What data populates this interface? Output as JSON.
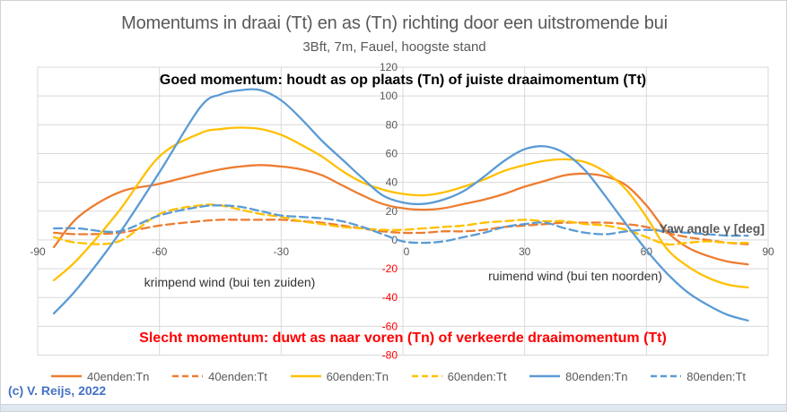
{
  "header": {
    "title": "Momentums in draai (Tt) en as (Tn) richting door een uitstromende bui",
    "subtitle": "3Bft, 7m, Fauel, hoogste stand",
    "title_color": "#595959"
  },
  "annotations": {
    "good_momentum": "Goed momentum: houdt as op plaats (Tn) of juiste draaimomentum (Tt)",
    "bad_momentum": "Slecht momentum: duwt as naar voren (Tn) of verkeerde draaimomentum (Tt)",
    "left_region": "krimpend wind (bui ten zuiden)",
    "right_region": "ruimend wind (bui ten noorden)",
    "x_axis_label": "Yaw angle γ [deg]",
    "good_color": "#000000",
    "bad_color": "#FF0000"
  },
  "footer": {
    "copyright": "(c) V. Reijs, 2022",
    "color": "#4472C4"
  },
  "chart_data": {
    "type": "line",
    "title": "Momentums in draai (Tt) en as (Tn) richting door een uitstromende bui",
    "subtitle": "3Bft, 7m, Fauel, hoogste stand",
    "xlabel": "Yaw angle γ [deg]",
    "ylabel": "",
    "xlim": [
      -90,
      90
    ],
    "ylim": [
      -80,
      120
    ],
    "x_ticks": [
      -90,
      -60,
      -30,
      0,
      30,
      60,
      90
    ],
    "y_ticks": [
      120,
      100,
      80,
      60,
      40,
      20,
      0,
      -20,
      -40,
      -60,
      -80
    ],
    "grid": true,
    "grid_color": "#D9D9D9",
    "tick_color": "#595959",
    "negative_tick_color": "#FF0000",
    "legend_position": "bottom",
    "x": [
      -86,
      -80,
      -70,
      -60,
      -50,
      -45,
      -40,
      -35,
      -30,
      -25,
      -20,
      -15,
      -10,
      -5,
      0,
      5,
      10,
      15,
      20,
      25,
      30,
      35,
      40,
      45,
      50,
      55,
      60,
      65,
      70,
      75,
      80,
      85
    ],
    "series": [
      {
        "name": "40enden:Tn",
        "color": "#ED7D31",
        "dash": false,
        "values": [
          -5,
          16,
          33,
          39,
          46,
          49,
          51,
          52,
          51,
          49,
          45,
          38,
          31,
          25,
          22,
          21,
          22,
          25,
          28,
          32,
          37,
          41,
          45,
          46,
          44,
          38,
          24,
          6,
          -5,
          -11,
          -15,
          -17
        ]
      },
      {
        "name": "40enden:Tt",
        "color": "#ED7D31",
        "dash": true,
        "values": [
          5,
          4,
          5,
          10,
          13,
          14,
          14,
          14,
          14,
          13,
          12,
          10,
          8,
          6,
          5,
          5,
          6,
          6,
          7,
          9,
          10,
          11,
          12,
          12,
          12,
          11,
          9,
          5,
          2,
          0,
          -2,
          -3
        ]
      },
      {
        "name": "60enden:Tn",
        "color": "#FFC000",
        "dash": false,
        "values": [
          -28,
          -13,
          20,
          58,
          74,
          77,
          78,
          77,
          73,
          66,
          58,
          48,
          40,
          35,
          32,
          31,
          33,
          37,
          42,
          48,
          52,
          55,
          56,
          54,
          47,
          35,
          16,
          -6,
          -18,
          -26,
          -31,
          -33
        ]
      },
      {
        "name": "60enden:Tt",
        "color": "#FFC000",
        "dash": true,
        "values": [
          2,
          -2,
          -1,
          18,
          24,
          24,
          21,
          18,
          16,
          13,
          11,
          9,
          8,
          7,
          7,
          8,
          9,
          10,
          12,
          13,
          14,
          13,
          13,
          11,
          10,
          7,
          2,
          -3,
          -2,
          -1,
          -2,
          -2
        ]
      },
      {
        "name": "80enden:Tn",
        "color": "#5B9BD5",
        "dash": false,
        "values": [
          -51,
          -33,
          4,
          47,
          92,
          101,
          104,
          104,
          97,
          84,
          69,
          56,
          43,
          31,
          26,
          25,
          28,
          34,
          44,
          55,
          63,
          65,
          60,
          48,
          30,
          11,
          -7,
          -23,
          -36,
          -45,
          -52,
          -56
        ]
      },
      {
        "name": "80enden:Tt",
        "color": "#5B9BD5",
        "dash": true,
        "values": [
          8,
          8,
          6,
          17,
          23,
          24,
          23,
          20,
          17,
          16,
          15,
          13,
          9,
          4,
          -1,
          -2,
          -1,
          2,
          5,
          9,
          11,
          12,
          8,
          5,
          4,
          6,
          7,
          6,
          5,
          4,
          3,
          3
        ]
      }
    ]
  }
}
